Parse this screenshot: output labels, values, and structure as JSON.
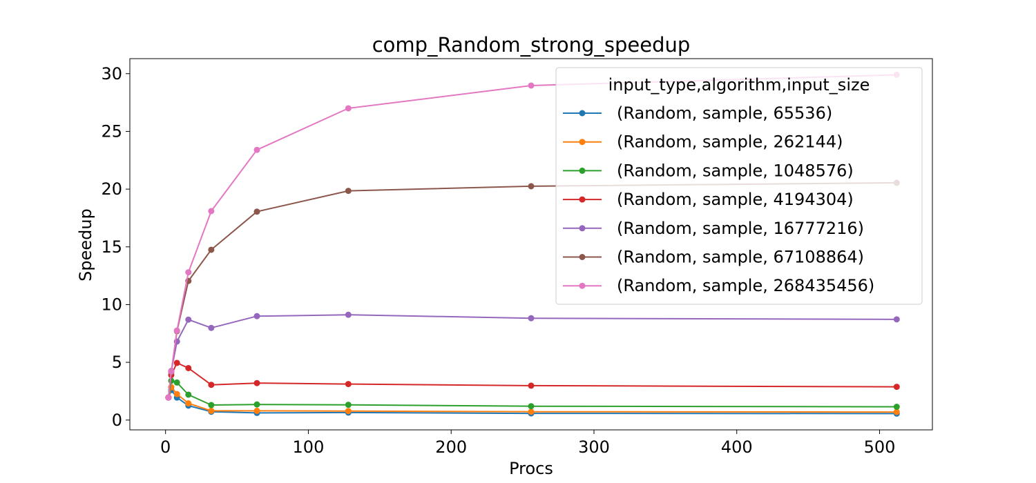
{
  "chart_data": {
    "type": "line",
    "title": "comp_Random_strong_speedup",
    "xlabel": "Procs",
    "ylabel": "Speedup",
    "xlim": [
      -25,
      537
    ],
    "ylim": [
      -0.85,
      31.3
    ],
    "xticks": [
      0,
      100,
      200,
      300,
      400,
      500
    ],
    "yticks": [
      0,
      5,
      10,
      15,
      20,
      25,
      30
    ],
    "grid": false,
    "legend": {
      "title": "input_type,algorithm,input_size",
      "placement": "top-right"
    },
    "x": [
      2,
      4,
      8,
      16,
      32,
      64,
      128,
      256,
      512
    ],
    "series": [
      {
        "name": "(Random, sample, 65536)",
        "color": "#1f77b4",
        "values": [
          1.95,
          2.6,
          1.95,
          1.25,
          0.72,
          0.62,
          0.65,
          0.58,
          0.56
        ]
      },
      {
        "name": "(Random, sample, 262144)",
        "color": "#ff7f0e",
        "values": [
          1.95,
          2.85,
          2.25,
          1.45,
          0.8,
          0.8,
          0.78,
          0.72,
          0.7
        ]
      },
      {
        "name": "(Random, sample, 1048576)",
        "color": "#2ca02c",
        "values": [
          1.95,
          3.4,
          3.25,
          2.2,
          1.3,
          1.35,
          1.32,
          1.2,
          1.15
        ]
      },
      {
        "name": "(Random, sample, 4194304)",
        "color": "#d62728",
        "values": [
          1.95,
          3.9,
          4.95,
          4.5,
          3.05,
          3.2,
          3.12,
          2.98,
          2.88
        ]
      },
      {
        "name": "(Random, sample, 16777216)",
        "color": "#9467bd",
        "values": [
          1.95,
          4.25,
          6.8,
          8.7,
          7.98,
          9.0,
          9.12,
          8.82,
          8.72
        ]
      },
      {
        "name": "(Random, sample, 67108864)",
        "color": "#8c564b",
        "values": [
          1.95,
          4.15,
          7.7,
          12.05,
          14.75,
          18.05,
          19.85,
          20.25,
          20.55
        ]
      },
      {
        "name": "(Random, sample, 268435456)",
        "color": "#e377c2",
        "values": [
          1.95,
          4.2,
          7.75,
          12.8,
          18.1,
          23.4,
          27.0,
          28.97,
          29.9
        ]
      }
    ]
  }
}
